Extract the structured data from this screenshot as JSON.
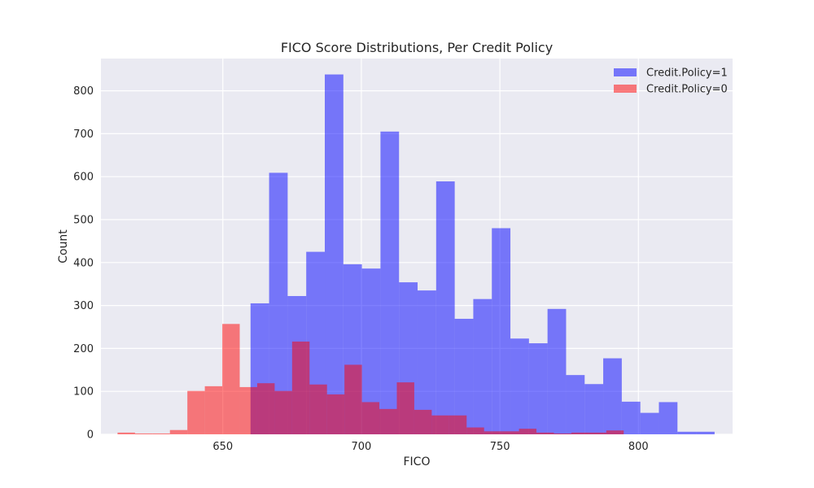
{
  "chart_data": {
    "type": "histogram",
    "title": "FICO Score Distributions, Per Credit Policy",
    "xlabel": "FICO",
    "ylabel": "Count",
    "xlim": [
      606,
      834
    ],
    "ylim": [
      0,
      875
    ],
    "xticks": [
      650,
      700,
      750,
      800
    ],
    "yticks": [
      0,
      100,
      200,
      300,
      400,
      500,
      600,
      700,
      800
    ],
    "grid": true,
    "legend_position": "top-right",
    "series": [
      {
        "name": "Credit.Policy=1",
        "color": "#0000ff",
        "opacity": 0.5,
        "bin_width": 6.7,
        "bin_start": 660,
        "counts": [
          305,
          609,
          322,
          425,
          838,
          396,
          386,
          705,
          354,
          335,
          589,
          269,
          315,
          480,
          223,
          212,
          292,
          138,
          117,
          177,
          76,
          50,
          75,
          6,
          6
        ]
      },
      {
        "name": "Credit.Policy=0",
        "color": "#ff0000",
        "opacity": 0.5,
        "bin_width": 6.3,
        "bin_start": 612,
        "counts": [
          4,
          2,
          2,
          10,
          101,
          112,
          257,
          110,
          119,
          101,
          216,
          116,
          93,
          162,
          75,
          59,
          121,
          57,
          44,
          44,
          16,
          7,
          7,
          13,
          4,
          2,
          4,
          4,
          9
        ]
      }
    ]
  }
}
